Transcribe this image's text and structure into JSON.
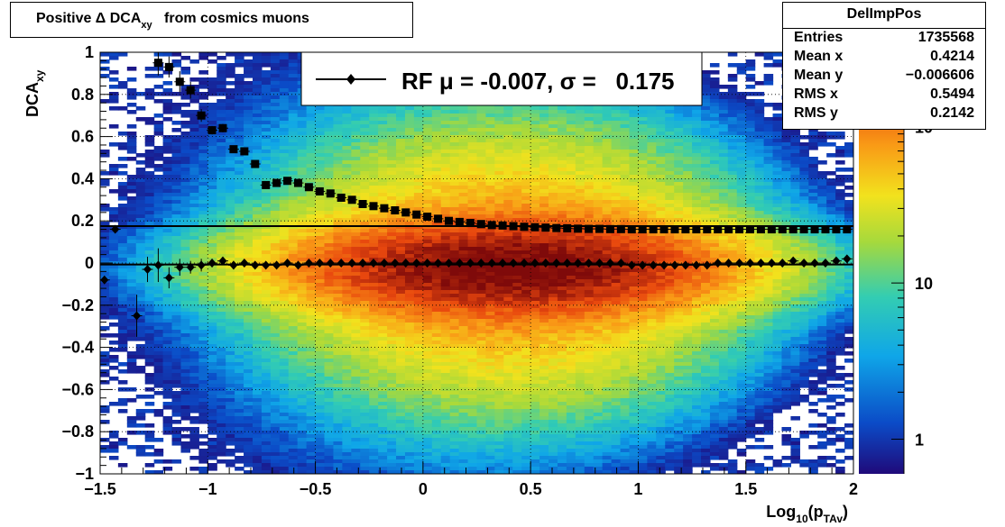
{
  "title": {
    "prefix": "Positive Δ DCA",
    "subscript": "xy",
    "suffix": "from cosmics muons"
  },
  "stats": {
    "name": "DelImpPos",
    "rows": [
      {
        "label": "Entries",
        "value": "1735568"
      },
      {
        "label": "Mean x",
        "value": "0.4214"
      },
      {
        "label": "Mean y",
        "value": "−0.006606"
      },
      {
        "label": "RMS x",
        "value": "0.5494"
      },
      {
        "label": "RMS y",
        "value": "0.2142"
      }
    ]
  },
  "legend": {
    "text": "RF μ = -0.007, σ =   0.175"
  },
  "axes": {
    "x_title": "Log",
    "x_title_sub1": "10",
    "x_title_mid": "(p",
    "x_title_sub2": "TAv",
    "x_title_end": ")",
    "y_title": "DCA",
    "y_title_sub": "xy",
    "x_ticks": [
      {
        "v": -1.5,
        "label": "−1.5"
      },
      {
        "v": -1,
        "label": "−1"
      },
      {
        "v": -0.5,
        "label": "−0.5"
      },
      {
        "v": 0,
        "label": "0"
      },
      {
        "v": 0.5,
        "label": "0.5"
      },
      {
        "v": 1,
        "label": "1"
      },
      {
        "v": 1.5,
        "label": "1.5"
      },
      {
        "v": 2,
        "label": "2"
      }
    ],
    "y_ticks": [
      {
        "v": -1,
        "label": "−1"
      },
      {
        "v": -0.8,
        "label": "−0.8"
      },
      {
        "v": -0.6,
        "label": "−0.6"
      },
      {
        "v": -0.4,
        "label": "−0.4"
      },
      {
        "v": -0.2,
        "label": "−0.2"
      },
      {
        "v": 0,
        "label": "0"
      },
      {
        "v": 0.2,
        "label": "0.2"
      },
      {
        "v": 0.4,
        "label": "0.4"
      },
      {
        "v": 0.6,
        "label": "0.6"
      },
      {
        "v": 0.8,
        "label": "0.8"
      },
      {
        "v": 1,
        "label": "1"
      }
    ],
    "z_ticks": [
      {
        "v": 1,
        "label": "1"
      },
      {
        "v": 10,
        "label": "10"
      },
      {
        "v": 100,
        "label": "10",
        "sup": "2"
      }
    ]
  },
  "colors": {
    "palette": [
      "#1f0a7a",
      "#0b4bc7",
      "#0fa6e8",
      "#33cdb2",
      "#a6d93c",
      "#f2e21d",
      "#f99a16",
      "#e8470e",
      "#7f0a0a"
    ],
    "markers": "#000000"
  },
  "chart_data": {
    "type": "heatmap",
    "title": "Positive Δ DCA_xy from cosmics muons",
    "xlabel": "Log_10(p_TAv)",
    "ylabel": "DCA_xy",
    "xlim": [
      -1.5,
      2
    ],
    "ylim": [
      -1,
      1
    ],
    "z_scale": "log",
    "zlim": [
      0.6,
      300
    ],
    "grid": "dotted",
    "legend_position": "top",
    "stats_position": "top-right",
    "density_model": {
      "peak_x": 0.4,
      "peak_y": -0.02,
      "sigma_x": 0.55,
      "sigma_y_core": 0.12,
      "sigma_y_tail": 0.35
    },
    "fit_line": {
      "name": "RF",
      "mu": -0.007,
      "sigma": 0.175
    },
    "series": [
      {
        "name": "mean",
        "marker": "diamond",
        "x": [
          -1.48,
          -1.43,
          -1.33,
          -1.28,
          -1.23,
          -1.18,
          -1.13,
          -1.08,
          -1.03,
          -0.98,
          -0.93,
          -0.88,
          -0.83,
          -0.78,
          -0.73,
          -0.68,
          -0.63,
          -0.58,
          -0.53,
          -0.48,
          -0.43,
          -0.38,
          -0.33,
          -0.28,
          -0.23,
          -0.18,
          -0.13,
          -0.08,
          -0.03,
          0.02,
          0.07,
          0.12,
          0.17,
          0.22,
          0.27,
          0.32,
          0.37,
          0.42,
          0.47,
          0.52,
          0.57,
          0.62,
          0.67,
          0.72,
          0.77,
          0.82,
          0.87,
          0.92,
          0.97,
          1.02,
          1.07,
          1.12,
          1.17,
          1.22,
          1.27,
          1.32,
          1.37,
          1.42,
          1.47,
          1.52,
          1.57,
          1.62,
          1.67,
          1.72,
          1.77,
          1.82,
          1.87,
          1.92,
          1.97
        ],
        "y": [
          -0.08,
          0.16,
          -0.25,
          -0.03,
          -0.01,
          -0.07,
          -0.02,
          -0.02,
          -0.01,
          0.0,
          0.01,
          -0.01,
          0.0,
          -0.01,
          -0.01,
          -0.01,
          0.0,
          -0.01,
          0.0,
          0.0,
          0.0,
          0.0,
          0.0,
          0.0,
          0.0,
          0.0,
          0.0,
          0.0,
          0.0,
          0.0,
          0.0,
          0.0,
          0.0,
          0.0,
          0.0,
          0.0,
          0.0,
          0.0,
          0.0,
          0.0,
          0.0,
          0.0,
          0.0,
          0.0,
          0.0,
          0.0,
          0.0,
          0.0,
          -0.01,
          -0.01,
          -0.01,
          -0.01,
          -0.01,
          -0.01,
          -0.01,
          -0.01,
          0.0,
          0.0,
          0.0,
          0.0,
          0.0,
          0.0,
          0.0,
          0.01,
          0.0,
          0.0,
          0.0,
          0.01,
          0.02
        ],
        "err": [
          0.0,
          0.0,
          0.1,
          0.06,
          0.08,
          0.05,
          0.04,
          0.03,
          0.03,
          0.02,
          0.02,
          0.02,
          0.01,
          0.01,
          0.01,
          0.01,
          0.01,
          0.0,
          0.0,
          0.0,
          0.0,
          0.0,
          0.0,
          0.0,
          0.0,
          0.0,
          0.0,
          0.0,
          0.0,
          0.0,
          0.0,
          0.0,
          0.0,
          0.0,
          0.0,
          0.0,
          0.0,
          0.0,
          0.0,
          0.0,
          0.0,
          0.0,
          0.0,
          0.0,
          0.0,
          0.0,
          0.0,
          0.0,
          0.0,
          0.0,
          0.0,
          0.0,
          0.0,
          0.0,
          0.0,
          0.0,
          0.0,
          0.0,
          0.0,
          0.0,
          0.0,
          0.0,
          0.0,
          0.0,
          0.0,
          0.0,
          0.0,
          0.0,
          0.0
        ]
      },
      {
        "name": "RMS",
        "marker": "square",
        "x": [
          -1.23,
          -1.18,
          -1.13,
          -1.08,
          -1.03,
          -0.98,
          -0.93,
          -0.88,
          -0.83,
          -0.78,
          -0.73,
          -0.68,
          -0.63,
          -0.58,
          -0.53,
          -0.48,
          -0.43,
          -0.38,
          -0.33,
          -0.28,
          -0.23,
          -0.18,
          -0.13,
          -0.08,
          -0.03,
          0.02,
          0.07,
          0.12,
          0.17,
          0.22,
          0.27,
          0.32,
          0.37,
          0.42,
          0.47,
          0.52,
          0.57,
          0.62,
          0.67,
          0.72,
          0.77,
          0.82,
          0.87,
          0.92,
          0.97,
          1.02,
          1.07,
          1.12,
          1.17,
          1.22,
          1.27,
          1.32,
          1.37,
          1.42,
          1.47,
          1.52,
          1.57,
          1.62,
          1.67,
          1.72,
          1.77,
          1.82,
          1.87,
          1.92,
          1.97
        ],
        "y": [
          0.95,
          0.93,
          0.86,
          0.82,
          0.7,
          0.63,
          0.64,
          0.54,
          0.53,
          0.47,
          0.37,
          0.38,
          0.39,
          0.38,
          0.36,
          0.34,
          0.33,
          0.31,
          0.3,
          0.28,
          0.27,
          0.26,
          0.25,
          0.24,
          0.23,
          0.22,
          0.21,
          0.2,
          0.195,
          0.19,
          0.185,
          0.18,
          0.178,
          0.175,
          0.172,
          0.17,
          0.168,
          0.166,
          0.165,
          0.163,
          0.162,
          0.162,
          0.161,
          0.161,
          0.16,
          0.16,
          0.16,
          0.16,
          0.16,
          0.16,
          0.16,
          0.16,
          0.16,
          0.16,
          0.16,
          0.16,
          0.16,
          0.16,
          0.16,
          0.16,
          0.16,
          0.16,
          0.16,
          0.16,
          0.16
        ],
        "err": [
          0.06,
          0.05,
          0.05,
          0.04,
          0.03,
          0.02,
          0.02,
          0.01,
          0.01,
          0.01,
          0.0,
          0.0,
          0.0,
          0.0,
          0.0,
          0.0,
          0.0,
          0.0,
          0.0,
          0.0,
          0.0,
          0.0,
          0.0,
          0.0,
          0.0,
          0.0,
          0.0,
          0.0,
          0.0,
          0.0,
          0.0,
          0.0,
          0.0,
          0.0,
          0.0,
          0.0,
          0.0,
          0.0,
          0.0,
          0.0,
          0.0,
          0.0,
          0.0,
          0.0,
          0.0,
          0.0,
          0.0,
          0.0,
          0.0,
          0.0,
          0.0,
          0.0,
          0.0,
          0.0,
          0.0,
          0.0,
          0.0,
          0.0,
          0.0,
          0.0,
          0.0,
          0.0,
          0.0,
          0.0,
          0.0
        ]
      }
    ]
  }
}
